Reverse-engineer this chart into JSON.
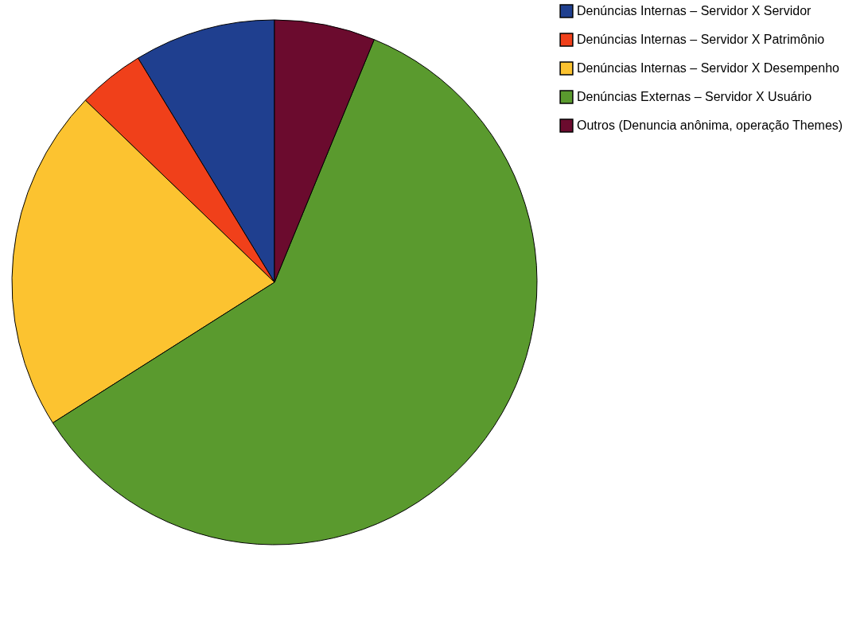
{
  "chart_data": {
    "type": "pie",
    "categories": [
      "Denúncias Internas – Servidor X Servidor",
      "Denúncias Internas – Servidor X Patrimônio",
      "Denúncias Internas – Servidor X Desempenho",
      "Denúncias Externas – Servidor X Usuário",
      "Outros (Denuncia anônima, operação Themes)"
    ],
    "values": [
      8.7,
      4.1,
      21.2,
      59.8,
      6.2
    ],
    "colors": [
      "#1f3f8f",
      "#f0401a",
      "#fcc330",
      "#5a9a2e",
      "#6b0b2e"
    ],
    "legend": "right"
  }
}
